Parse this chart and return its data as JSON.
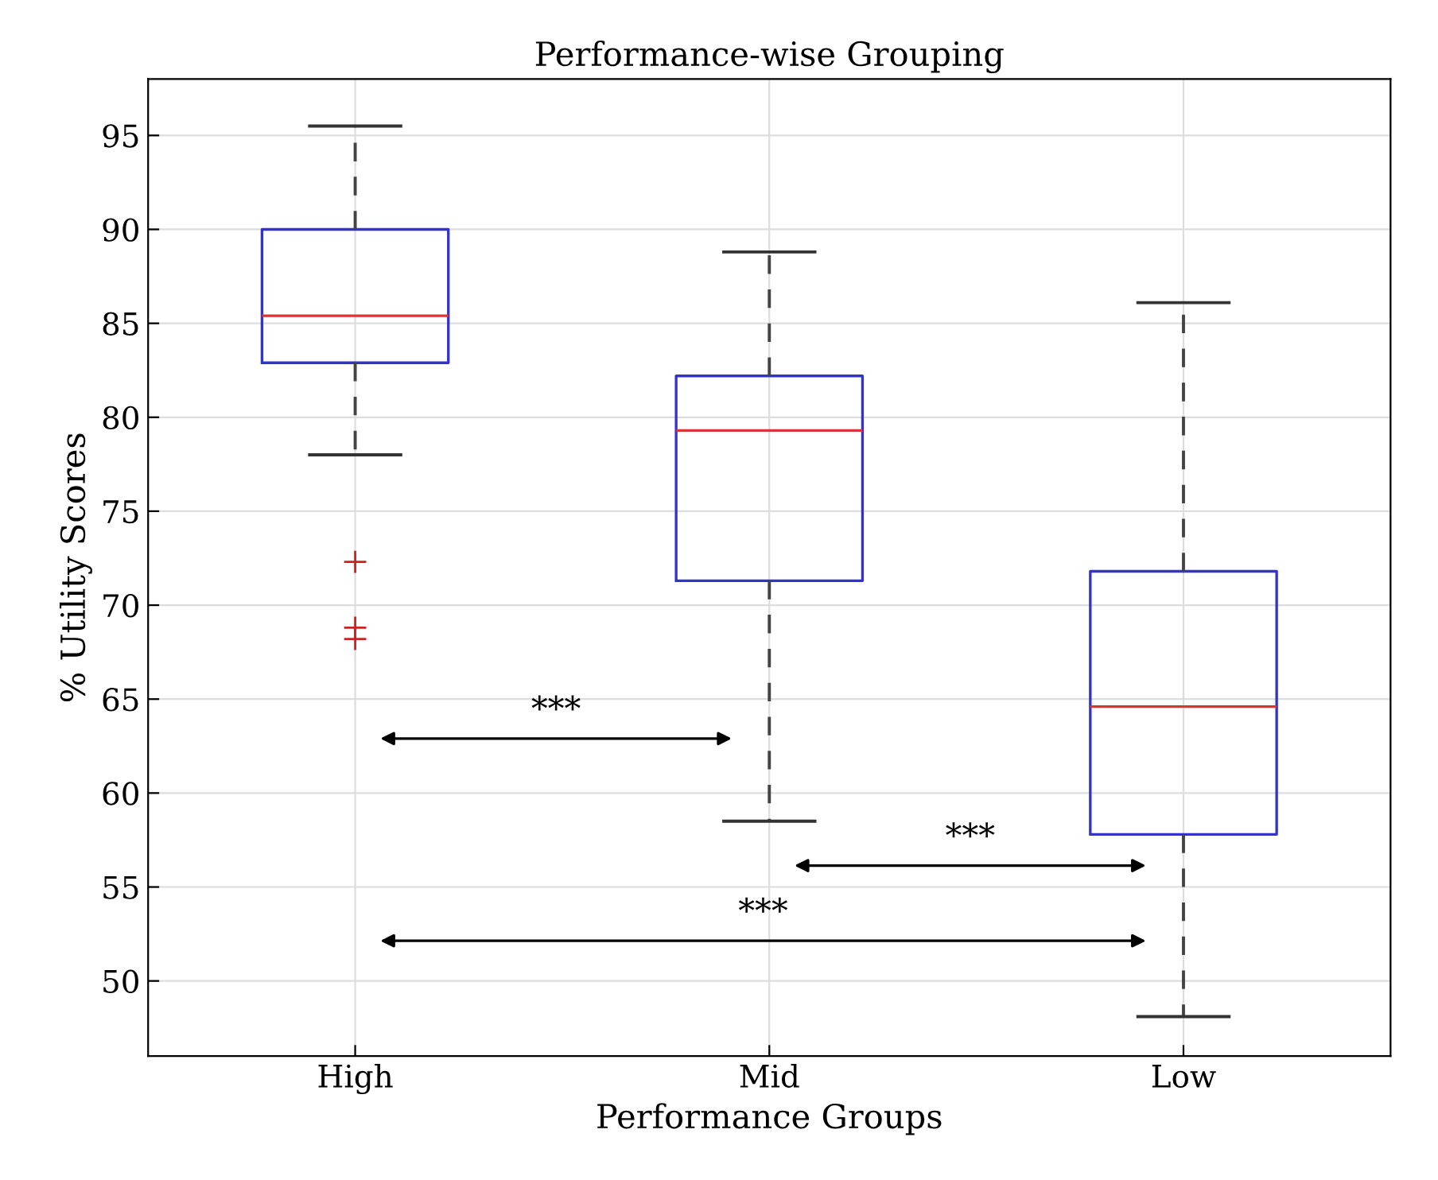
{
  "chart_data": {
    "type": "box",
    "title": "Performance-wise Grouping",
    "xlabel": "Performance Groups",
    "ylabel": "% Utility Scores",
    "categories": [
      "High",
      "Mid",
      "Low"
    ],
    "boxes": [
      {
        "low": 78.0,
        "q1": 82.9,
        "median": 85.4,
        "q3": 90.0,
        "high": 95.5,
        "outliers": [
          72.3,
          68.8,
          68.2
        ]
      },
      {
        "low": 58.5,
        "q1": 71.3,
        "median": 79.3,
        "q3": 82.2,
        "high": 88.8
      },
      {
        "low": 48.1,
        "q1": 57.8,
        "median": 64.6,
        "q3": 71.8,
        "high": 86.1
      }
    ],
    "ylim": [
      46,
      98
    ],
    "yticks": [
      50,
      55,
      60,
      65,
      70,
      75,
      80,
      85,
      90,
      95
    ],
    "grid": true,
    "annotations": [
      "***",
      "***",
      "***"
    ]
  }
}
